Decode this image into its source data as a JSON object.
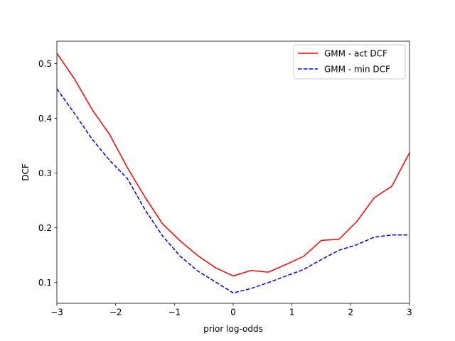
{
  "chart_data": {
    "type": "line",
    "title": "",
    "xlabel": "prior log-odds",
    "ylabel": "DCF",
    "xlim": [
      -3,
      3
    ],
    "ylim": [
      0.062,
      0.541
    ],
    "xticks": [
      -3,
      -2,
      -1,
      0,
      1,
      2,
      3
    ],
    "xtick_labels": [
      "−3",
      "−2",
      "−1",
      "0",
      "1",
      "2",
      "3"
    ],
    "yticks": [
      0.1,
      0.2,
      0.3,
      0.4,
      0.5
    ],
    "ytick_labels": [
      "0.1",
      "0.2",
      "0.3",
      "0.4",
      "0.5"
    ],
    "grid": false,
    "legend_position": "top-right",
    "x": [
      -3.0,
      -2.7,
      -2.4,
      -2.1,
      -1.8,
      -1.5,
      -1.2,
      -0.9,
      -0.6,
      -0.3,
      0.0,
      0.3,
      0.6,
      0.9,
      1.2,
      1.5,
      1.8,
      2.1,
      2.4,
      2.7,
      3.0
    ],
    "series": [
      {
        "name": "GMM - act DCF",
        "color": "#ff0000",
        "dash": "solid",
        "values": [
          0.519,
          0.472,
          0.416,
          0.37,
          0.31,
          0.256,
          0.207,
          0.176,
          0.149,
          0.127,
          0.112,
          0.122,
          0.119,
          0.133,
          0.148,
          0.177,
          0.179,
          0.211,
          0.255,
          0.276,
          0.337
        ]
      },
      {
        "name": "GMM - min DCF",
        "color": "#0000ff",
        "dash": "dashed",
        "values": [
          0.454,
          0.409,
          0.362,
          0.323,
          0.29,
          0.233,
          0.185,
          0.148,
          0.121,
          0.101,
          0.081,
          0.089,
          0.1,
          0.112,
          0.124,
          0.142,
          0.159,
          0.169,
          0.183,
          0.187,
          0.187
        ]
      }
    ]
  }
}
